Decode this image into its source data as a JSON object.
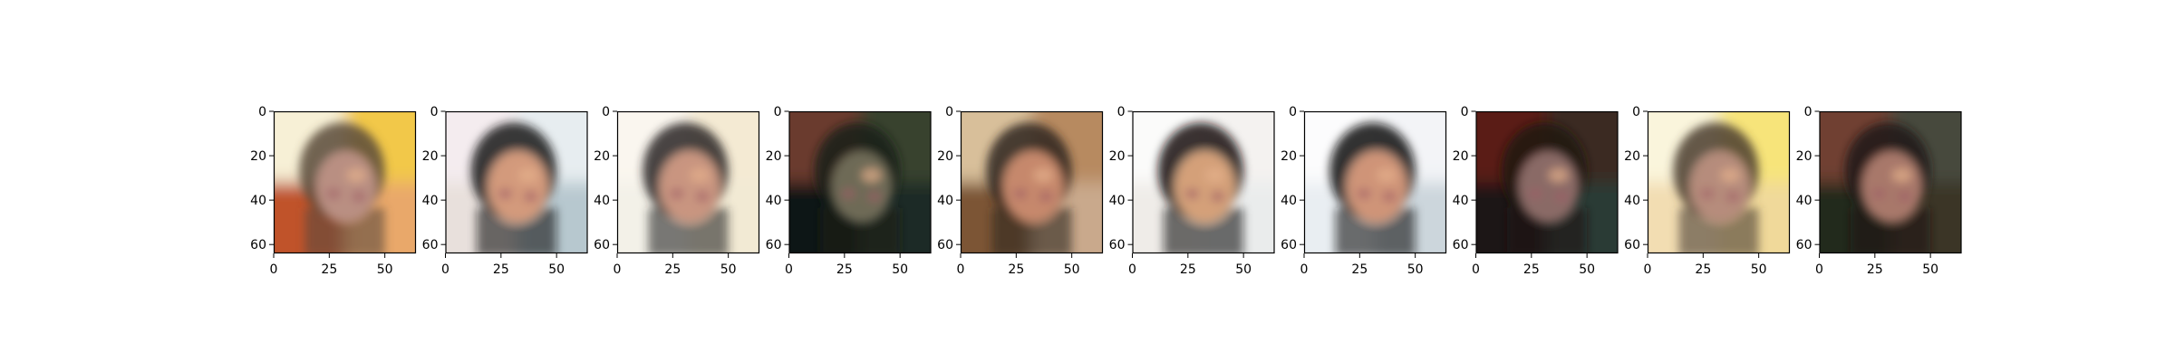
{
  "chart_data": {
    "type": "image-grid",
    "panels": [
      {
        "index": 0,
        "tone": "light-warm",
        "bg_tl": "#f7f0d6",
        "bg_tr": "#f2c84a",
        "bg_bl": "#c0522a",
        "bg_br": "#e9a86a",
        "face": "#b98f82",
        "hair": "#5b4a3a"
      },
      {
        "index": 1,
        "tone": "dark-hair",
        "bg_tl": "#f4ecef",
        "bg_tr": "#e7edf0",
        "bg_bl": "#e8e0dc",
        "bg_br": "#b7c8cf",
        "face": "#d39a7c",
        "hair": "#141416"
      },
      {
        "index": 2,
        "tone": "light-neutral",
        "bg_tl": "#faf6ef",
        "bg_tr": "#f4ead3",
        "bg_bl": "#f3f1e8",
        "bg_br": "#f2ead4",
        "face": "#c99580",
        "hair": "#2a2624"
      },
      {
        "index": 3,
        "tone": "dark-green",
        "bg_tl": "#6a3a2f",
        "bg_tr": "#37432f",
        "bg_bl": "#0f1412",
        "bg_br": "#1b2a25",
        "face": "#6e6a56",
        "hair": "#1a1c18"
      },
      {
        "index": 4,
        "tone": "medium-mixed",
        "bg_tl": "#d8bf9a",
        "bg_tr": "#b78a60",
        "bg_bl": "#7b5435",
        "bg_br": "#c9a98c",
        "face": "#c6886c",
        "hair": "#2d241e"
      },
      {
        "index": 5,
        "tone": "light-dark-hair",
        "bg_tl": "#fbfbfa",
        "bg_tr": "#f4f2f0",
        "bg_bl": "#efece8",
        "bg_br": "#eaecec",
        "face": "#d4a079",
        "hair": "#141211"
      },
      {
        "index": 6,
        "tone": "light-dark-hair",
        "bg_tl": "#fcfcfd",
        "bg_tr": "#f3f4f7",
        "bg_bl": "#e9eef2",
        "bg_br": "#ccd6dc",
        "face": "#cf9478",
        "hair": "#121212"
      },
      {
        "index": 7,
        "tone": "dark-red",
        "bg_tl": "#5a1e14",
        "bg_tr": "#3a2a22",
        "bg_bl": "#1a1512",
        "bg_br": "#2c3a34",
        "face": "#8a6a66",
        "hair": "#1c1412"
      },
      {
        "index": 8,
        "tone": "light-yellow",
        "bg_tl": "#faf5dc",
        "bg_tr": "#f7e47a",
        "bg_bl": "#f2ddb2",
        "bg_br": "#f0d99a",
        "face": "#b68c7c",
        "hair": "#4a3c30"
      },
      {
        "index": 9,
        "tone": "dark-mixed",
        "bg_tl": "#6f4030",
        "bg_tr": "#474a3e",
        "bg_bl": "#222a1c",
        "bg_br": "#3b3528",
        "face": "#a8786a",
        "hair": "#1f1814"
      }
    ],
    "x_ticks": [
      "0",
      "25",
      "50"
    ],
    "y_ticks": [
      "0",
      "20",
      "40",
      "60"
    ],
    "xlim": [
      0,
      64
    ],
    "ylim": [
      64,
      0
    ],
    "grid": false
  }
}
